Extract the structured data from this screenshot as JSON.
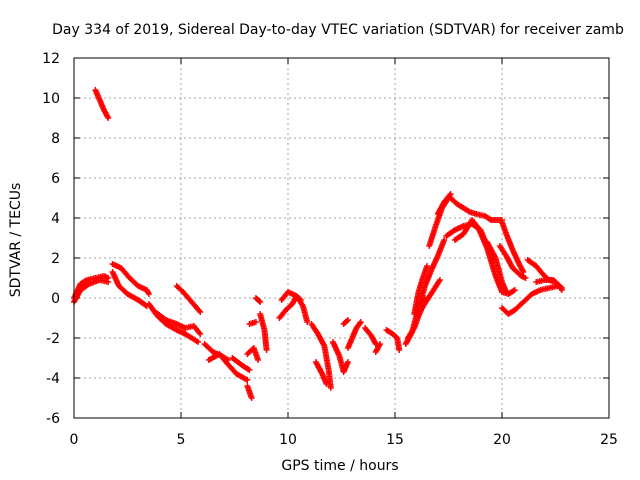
{
  "chart_data": {
    "type": "scatter",
    "title": "Day 334 of 2019, Sidereal Day-to-day VTEC variation (SDTVAR) for receiver zamb",
    "xlabel": "GPS time / hours",
    "ylabel": "SDTVAR / TECUs",
    "xlim": [
      0,
      25
    ],
    "ylim": [
      -6,
      12
    ],
    "xticks": [
      "0",
      "5",
      "10",
      "15",
      "20",
      "25"
    ],
    "yticks": [
      "-6",
      "-4",
      "-2",
      "0",
      "2",
      "4",
      "6",
      "8",
      "10",
      "12"
    ],
    "grid": true,
    "marker": "+",
    "series_color": "#ff0000",
    "series": [
      {
        "name": "SDTVAR",
        "segments": [
          [
            [
              0.0,
              0.0
            ],
            [
              0.3,
              0.7
            ],
            [
              0.6,
              0.9
            ],
            [
              1.0,
              1.0
            ],
            [
              1.4,
              1.1
            ],
            [
              1.6,
              1.0
            ]
          ],
          [
            [
              0.0,
              -0.2
            ],
            [
              0.3,
              0.4
            ],
            [
              0.7,
              0.7
            ],
            [
              1.2,
              0.9
            ],
            [
              1.6,
              0.8
            ]
          ],
          [
            [
              1.0,
              10.4
            ],
            [
              1.2,
              9.9
            ],
            [
              1.4,
              9.4
            ],
            [
              1.6,
              9.0
            ]
          ],
          [
            [
              1.8,
              1.7
            ],
            [
              2.2,
              1.5
            ],
            [
              2.6,
              1.0
            ],
            [
              3.0,
              0.6
            ],
            [
              3.4,
              0.4
            ],
            [
              3.5,
              0.2
            ]
          ],
          [
            [
              1.8,
              1.3
            ],
            [
              2.1,
              0.6
            ],
            [
              2.5,
              0.2
            ],
            [
              3.0,
              -0.1
            ],
            [
              3.4,
              -0.4
            ]
          ],
          [
            [
              3.5,
              -0.3
            ],
            [
              3.9,
              -0.9
            ],
            [
              4.3,
              -1.3
            ],
            [
              4.8,
              -1.6
            ],
            [
              5.2,
              -1.8
            ],
            [
              5.8,
              -2.2
            ]
          ],
          [
            [
              3.8,
              -0.7
            ],
            [
              4.3,
              -1.1
            ],
            [
              4.8,
              -1.3
            ],
            [
              5.2,
              -1.5
            ],
            [
              5.6,
              -1.4
            ],
            [
              5.9,
              -1.8
            ]
          ],
          [
            [
              4.8,
              0.6
            ],
            [
              5.1,
              0.3
            ],
            [
              5.5,
              -0.2
            ],
            [
              5.9,
              -0.7
            ]
          ],
          [
            [
              6.1,
              -2.3
            ],
            [
              6.5,
              -2.7
            ],
            [
              6.9,
              -2.9
            ],
            [
              7.2,
              -3.1
            ]
          ],
          [
            [
              6.3,
              -3.1
            ],
            [
              6.8,
              -2.8
            ],
            [
              7.1,
              -3.2
            ],
            [
              7.6,
              -3.8
            ],
            [
              8.1,
              -4.1
            ]
          ],
          [
            [
              7.4,
              -3.0
            ],
            [
              7.9,
              -3.4
            ],
            [
              8.2,
              -3.6
            ]
          ],
          [
            [
              8.1,
              -4.4
            ],
            [
              8.2,
              -4.7
            ],
            [
              8.3,
              -5.0
            ]
          ],
          [
            [
              8.1,
              -2.8
            ],
            [
              8.4,
              -2.5
            ],
            [
              8.6,
              -3.1
            ]
          ],
          [
            [
              8.2,
              -1.3
            ],
            [
              8.5,
              -1.2
            ]
          ],
          [
            [
              8.7,
              -0.8
            ],
            [
              8.9,
              -1.6
            ],
            [
              9.0,
              -2.6
            ]
          ],
          [
            [
              8.5,
              0.0
            ],
            [
              8.7,
              -0.2
            ]
          ],
          [
            [
              9.6,
              -1.0
            ],
            [
              9.9,
              -0.6
            ],
            [
              10.2,
              -0.3
            ],
            [
              10.4,
              0.1
            ],
            [
              10.6,
              -0.1
            ]
          ],
          [
            [
              9.7,
              -0.1
            ],
            [
              10.0,
              0.3
            ],
            [
              10.4,
              0.1
            ],
            [
              10.7,
              -0.4
            ],
            [
              10.9,
              -1.2
            ]
          ],
          [
            [
              11.1,
              -1.3
            ],
            [
              11.4,
              -1.8
            ],
            [
              11.7,
              -2.4
            ],
            [
              11.9,
              -3.6
            ],
            [
              12.0,
              -4.5
            ]
          ],
          [
            [
              11.3,
              -3.2
            ],
            [
              11.6,
              -3.8
            ],
            [
              11.8,
              -4.3
            ]
          ],
          [
            [
              12.1,
              -2.2
            ],
            [
              12.4,
              -2.9
            ],
            [
              12.6,
              -3.7
            ],
            [
              12.8,
              -3.2
            ]
          ],
          [
            [
              12.8,
              -2.5
            ],
            [
              13.0,
              -2.0
            ],
            [
              13.2,
              -1.5
            ],
            [
              13.4,
              -1.2
            ]
          ],
          [
            [
              12.6,
              -1.3
            ],
            [
              12.8,
              -1.1
            ]
          ],
          [
            [
              13.6,
              -1.5
            ],
            [
              13.9,
              -1.9
            ],
            [
              14.1,
              -2.3
            ]
          ],
          [
            [
              14.1,
              -2.7
            ],
            [
              14.3,
              -2.3
            ]
          ],
          [
            [
              14.6,
              -1.6
            ],
            [
              14.9,
              -1.8
            ],
            [
              15.1,
              -2.0
            ],
            [
              15.2,
              -2.6
            ]
          ],
          [
            [
              15.6,
              -2.0
            ],
            [
              15.9,
              -1.5
            ],
            [
              16.1,
              -0.9
            ],
            [
              16.3,
              -0.4
            ],
            [
              16.4,
              0.0
            ]
          ],
          [
            [
              15.5,
              -2.3
            ],
            [
              15.8,
              -1.7
            ],
            [
              16.1,
              -0.5
            ],
            [
              16.4,
              0.6
            ],
            [
              16.7,
              1.4
            ],
            [
              17.0,
              2.1
            ],
            [
              17.3,
              2.9
            ]
          ],
          [
            [
              15.9,
              -0.8
            ],
            [
              16.1,
              0.3
            ],
            [
              16.3,
              1.0
            ],
            [
              16.5,
              1.6
            ]
          ],
          [
            [
              16.2,
              -0.6
            ],
            [
              16.5,
              -0.1
            ],
            [
              16.8,
              0.4
            ],
            [
              17.1,
              0.9
            ]
          ],
          [
            [
              16.6,
              2.6
            ],
            [
              16.9,
              3.6
            ],
            [
              17.2,
              4.5
            ],
            [
              17.5,
              5.0
            ]
          ],
          [
            [
              17.0,
              4.2
            ],
            [
              17.3,
              4.8
            ],
            [
              17.6,
              5.2
            ]
          ],
          [
            [
              17.6,
              5.0
            ],
            [
              17.9,
              4.7
            ],
            [
              18.2,
              4.5
            ],
            [
              18.5,
              4.3
            ],
            [
              18.8,
              4.2
            ],
            [
              19.2,
              4.1
            ],
            [
              19.5,
              3.9
            ],
            [
              20.0,
              3.9
            ]
          ],
          [
            [
              17.4,
              3.1
            ],
            [
              17.8,
              3.4
            ],
            [
              18.2,
              3.6
            ],
            [
              18.6,
              3.7
            ],
            [
              19.0,
              3.4
            ],
            [
              19.3,
              2.6
            ],
            [
              19.6,
              1.9
            ]
          ],
          [
            [
              17.8,
              2.9
            ],
            [
              18.2,
              3.2
            ],
            [
              18.6,
              3.9
            ],
            [
              18.9,
              3.5
            ],
            [
              19.3,
              2.5
            ],
            [
              19.7,
              1.1
            ],
            [
              20.0,
              0.3
            ]
          ],
          [
            [
              19.3,
              2.8
            ],
            [
              19.7,
              2.0
            ],
            [
              20.0,
              0.8
            ],
            [
              20.2,
              0.3
            ]
          ],
          [
            [
              20.0,
              3.8
            ],
            [
              20.2,
              3.2
            ],
            [
              20.5,
              2.4
            ],
            [
              20.8,
              1.7
            ],
            [
              21.0,
              1.3
            ]
          ],
          [
            [
              19.9,
              2.6
            ],
            [
              20.2,
              2.1
            ],
            [
              20.5,
              1.5
            ],
            [
              20.9,
              1.1
            ],
            [
              21.1,
              1.0
            ]
          ],
          [
            [
              20.0,
              -0.5
            ],
            [
              20.3,
              -0.8
            ],
            [
              20.6,
              -0.6
            ],
            [
              21.0,
              -0.2
            ],
            [
              21.4,
              0.2
            ],
            [
              21.8,
              0.4
            ],
            [
              22.2,
              0.5
            ],
            [
              22.6,
              0.6
            ]
          ],
          [
            [
              20.0,
              0.3
            ],
            [
              20.3,
              0.2
            ],
            [
              20.6,
              0.4
            ]
          ],
          [
            [
              21.2,
              1.9
            ],
            [
              21.6,
              1.6
            ],
            [
              21.9,
              1.2
            ],
            [
              22.2,
              0.9
            ],
            [
              22.5,
              0.8
            ],
            [
              22.8,
              0.4
            ]
          ],
          [
            [
              21.6,
              0.8
            ],
            [
              22.0,
              0.9
            ],
            [
              22.4,
              0.9
            ],
            [
              22.8,
              0.5
            ]
          ]
        ]
      }
    ]
  }
}
